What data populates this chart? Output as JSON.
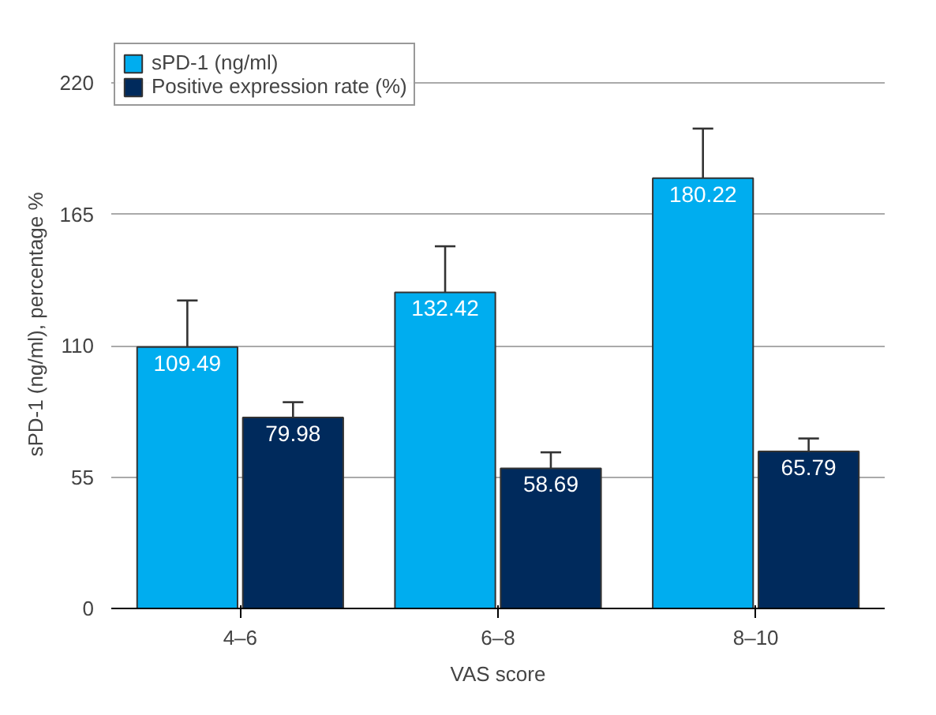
{
  "chart_data": {
    "type": "bar",
    "xlabel": "VAS score",
    "ylabel": "sPD-1 (ng/ml), percentage %",
    "categories": [
      "4–6",
      "6–8",
      "8–10"
    ],
    "series": [
      {
        "name": "sPD-1 (ng/ml)",
        "color": "#00adef",
        "values": [
          109.49,
          132.42,
          180.22
        ],
        "errors": [
          [
            109.49,
            129
          ],
          [
            132.42,
            151.7
          ],
          [
            180.22,
            201
          ]
        ]
      },
      {
        "name": "Positive expression rate (%)",
        "color": "#002a5c",
        "values": [
          79.98,
          58.69,
          65.79
        ],
        "errors": [
          [
            79.98,
            86.4
          ],
          [
            58.69,
            65.4
          ],
          [
            65.79,
            71.2
          ]
        ]
      }
    ],
    "data_labels": true,
    "ylim": [
      0,
      238
    ],
    "yticks": [
      0,
      55,
      110,
      165,
      220
    ],
    "grid": "y",
    "legend": "top left"
  }
}
